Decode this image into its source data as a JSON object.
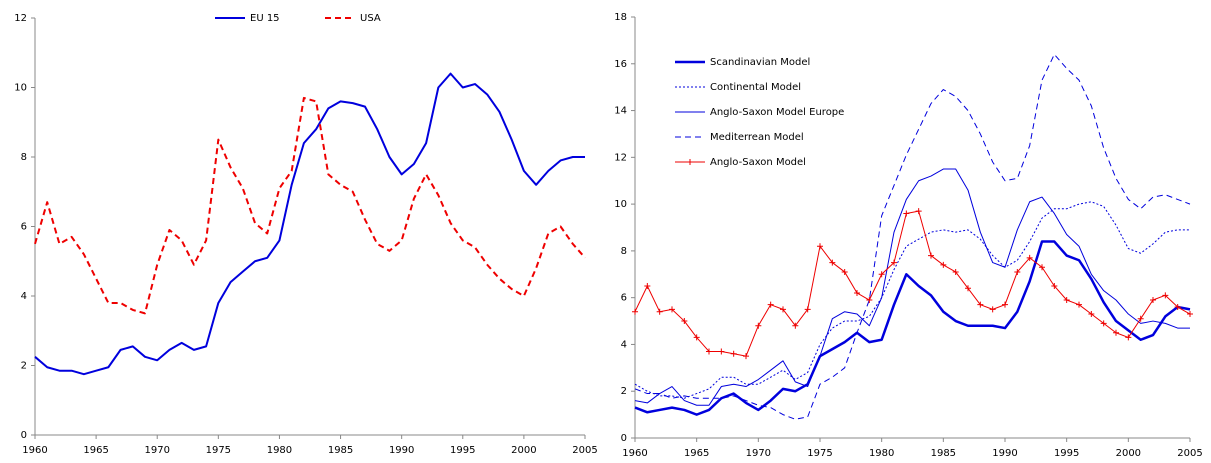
{
  "chart_data": [
    {
      "type": "line",
      "legend": "top",
      "x": [
        1960,
        1961,
        1962,
        1963,
        1964,
        1965,
        1966,
        1967,
        1968,
        1969,
        1970,
        1971,
        1972,
        1973,
        1974,
        1975,
        1976,
        1977,
        1978,
        1979,
        1980,
        1981,
        1982,
        1983,
        1984,
        1985,
        1986,
        1987,
        1988,
        1989,
        1990,
        1991,
        1992,
        1993,
        1994,
        1995,
        1996,
        1997,
        1998,
        1999,
        2000,
        2001,
        2002,
        2003,
        2004,
        2005
      ],
      "xlim": [
        1960,
        2005
      ],
      "xticks": [
        1960,
        1965,
        1970,
        1975,
        1980,
        1985,
        1990,
        1995,
        2000,
        2005
      ],
      "ylim": [
        0,
        12
      ],
      "yticks": [
        0,
        2,
        4,
        6,
        8,
        10,
        12
      ],
      "series": [
        {
          "name": "EU 15",
          "color": "#0000dd",
          "width": 2,
          "dash": "solid",
          "values": [
            2.25,
            1.95,
            1.85,
            1.85,
            1.75,
            1.85,
            1.95,
            2.45,
            2.55,
            2.25,
            2.15,
            2.45,
            2.65,
            2.45,
            2.55,
            3.8,
            4.4,
            4.7,
            5.0,
            5.1,
            5.6,
            7.2,
            8.4,
            8.8,
            9.4,
            9.6,
            9.55,
            9.45,
            8.8,
            8.0,
            7.5,
            7.8,
            8.4,
            10.0,
            10.4,
            10.0,
            10.1,
            9.8,
            9.3,
            8.5,
            7.6,
            7.2,
            7.6,
            7.9,
            8.0,
            8.0
          ]
        },
        {
          "name": "USA",
          "color": "#ee0000",
          "width": 2,
          "dash": "dashed",
          "values": [
            5.5,
            6.7,
            5.5,
            5.7,
            5.2,
            4.5,
            3.8,
            3.8,
            3.6,
            3.5,
            4.9,
            5.9,
            5.6,
            4.9,
            5.6,
            8.5,
            7.7,
            7.1,
            6.1,
            5.8,
            7.1,
            7.6,
            9.7,
            9.6,
            7.5,
            7.2,
            7.0,
            6.2,
            5.5,
            5.3,
            5.6,
            6.8,
            7.5,
            6.9,
            6.1,
            5.6,
            5.4,
            4.9,
            4.5,
            4.2,
            4.0,
            4.8,
            5.8,
            6.0,
            5.5,
            5.1
          ]
        }
      ]
    },
    {
      "type": "line",
      "legend": "left",
      "x": [
        1960,
        1961,
        1962,
        1963,
        1964,
        1965,
        1966,
        1967,
        1968,
        1969,
        1970,
        1971,
        1972,
        1973,
        1974,
        1975,
        1976,
        1977,
        1978,
        1979,
        1980,
        1981,
        1982,
        1983,
        1984,
        1985,
        1986,
        1987,
        1988,
        1989,
        1990,
        1991,
        1992,
        1993,
        1994,
        1995,
        1996,
        1997,
        1998,
        1999,
        2000,
        2001,
        2002,
        2003,
        2004,
        2005
      ],
      "xlim": [
        1960,
        2005
      ],
      "xticks": [
        1960,
        1965,
        1970,
        1975,
        1980,
        1985,
        1990,
        1995,
        2000,
        2005
      ],
      "ylim": [
        0,
        18
      ],
      "yticks": [
        0,
        2,
        4,
        6,
        8,
        10,
        12,
        14,
        16,
        18
      ],
      "series": [
        {
          "name": "Scandinavian Model",
          "color": "#0000dd",
          "width": 2.5,
          "dash": "solid",
          "values": [
            1.3,
            1.1,
            1.2,
            1.3,
            1.2,
            1.0,
            1.2,
            1.7,
            1.9,
            1.5,
            1.2,
            1.6,
            2.1,
            2.0,
            2.3,
            3.5,
            3.8,
            4.1,
            4.5,
            4.1,
            4.2,
            5.7,
            7.0,
            6.5,
            6.1,
            5.4,
            5.0,
            4.8,
            4.8,
            4.8,
            4.7,
            5.4,
            6.7,
            8.4,
            8.4,
            7.8,
            7.6,
            6.8,
            5.8,
            5.0,
            4.6,
            4.2,
            4.4,
            5.2,
            5.6,
            5.5
          ]
        },
        {
          "name": "Continental Model",
          "color": "#0000dd",
          "width": 1,
          "dash": "dotted",
          "values": [
            2.3,
            2.0,
            1.8,
            1.8,
            1.7,
            1.9,
            2.1,
            2.6,
            2.6,
            2.3,
            2.3,
            2.6,
            2.9,
            2.5,
            2.8,
            4.0,
            4.7,
            5.0,
            5.0,
            5.2,
            6.0,
            7.2,
            8.2,
            8.5,
            8.8,
            8.9,
            8.8,
            8.9,
            8.5,
            7.8,
            7.3,
            7.6,
            8.4,
            9.4,
            9.8,
            9.8,
            10.0,
            10.1,
            9.9,
            9.1,
            8.1,
            7.9,
            8.3,
            8.8,
            8.9,
            8.9
          ]
        },
        {
          "name": "Anglo-Saxon Model Europe",
          "color": "#0000dd",
          "width": 1,
          "dash": "solid",
          "values": [
            1.6,
            1.5,
            1.9,
            2.2,
            1.6,
            1.4,
            1.4,
            2.2,
            2.3,
            2.2,
            2.5,
            2.9,
            3.3,
            2.4,
            2.2,
            3.5,
            5.1,
            5.4,
            5.3,
            4.8,
            6.0,
            8.8,
            10.2,
            11.0,
            11.2,
            11.5,
            11.5,
            10.6,
            8.8,
            7.5,
            7.3,
            8.9,
            10.1,
            10.3,
            9.6,
            8.7,
            8.2,
            7.0,
            6.3,
            5.9,
            5.3,
            4.9,
            5.0,
            4.9,
            4.7,
            4.7
          ]
        },
        {
          "name": "Mediterrean Model",
          "color": "#0000dd",
          "width": 1,
          "dash": "dashed",
          "values": [
            2.1,
            1.9,
            1.9,
            1.7,
            1.8,
            1.7,
            1.7,
            1.7,
            1.8,
            1.6,
            1.4,
            1.3,
            1.0,
            0.8,
            0.9,
            2.3,
            2.6,
            3.0,
            4.5,
            5.9,
            9.5,
            10.8,
            12.1,
            13.2,
            14.3,
            14.9,
            14.6,
            14.0,
            13.0,
            11.8,
            11.0,
            11.1,
            12.5,
            15.3,
            16.4,
            15.8,
            15.3,
            14.2,
            12.4,
            11.1,
            10.2,
            9.8,
            10.3,
            10.4,
            10.2,
            10.0
          ]
        },
        {
          "name": "Anglo-Saxon Model",
          "color": "#ee0000",
          "width": 1,
          "dash": "solid",
          "marker": "plus",
          "values": [
            5.4,
            6.5,
            5.4,
            5.5,
            5.0,
            4.3,
            3.7,
            3.7,
            3.6,
            3.5,
            4.8,
            5.7,
            5.5,
            4.8,
            5.5,
            8.2,
            7.5,
            7.1,
            6.2,
            5.9,
            7.0,
            7.5,
            9.6,
            9.7,
            7.8,
            7.4,
            7.1,
            6.4,
            5.7,
            5.5,
            5.7,
            7.1,
            7.7,
            7.3,
            6.5,
            5.9,
            5.7,
            5.3,
            4.9,
            4.5,
            4.3,
            5.1,
            5.9,
            6.1,
            5.6,
            5.3
          ]
        }
      ]
    }
  ]
}
